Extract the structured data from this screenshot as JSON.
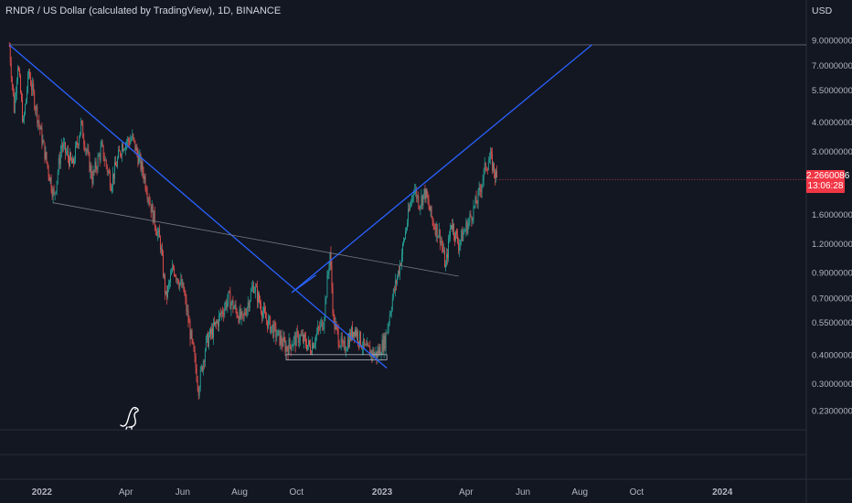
{
  "header": {
    "title": "RNDR / US Dollar (calculated by TradingView), 1D, BINANCE",
    "currency": "USD"
  },
  "price_badge": {
    "price": "2.2660086",
    "countdown": "13:06:28",
    "color": "#f23645"
  },
  "icons": [
    "dinosaur-mascot-icon"
  ],
  "colors": {
    "background": "#131722",
    "up_candle": "#26a69a",
    "down_candle": "#ef5350",
    "trendline": "#2962ff",
    "gray_line": "#787b86"
  },
  "chart_data": {
    "type": "candlestick",
    "title": "RNDR / US Dollar (calculated by TradingView), 1D, BINANCE",
    "y_scale": "log",
    "ylim": [
      0.19,
      10.4
    ],
    "xlim": [
      "2021-11-17",
      "2024-03-31"
    ],
    "y_ticks": [
      {
        "value": 9.0,
        "label": "9.0000000"
      },
      {
        "value": 7.0,
        "label": "7.0000000"
      },
      {
        "value": 5.5,
        "label": "5.5000000"
      },
      {
        "value": 4.0,
        "label": "4.0000000"
      },
      {
        "value": 3.0,
        "label": "3.0000000"
      },
      {
        "value": 1.6,
        "label": "1.6000000"
      },
      {
        "value": 1.2,
        "label": "1.2000000"
      },
      {
        "value": 0.9,
        "label": "0.9000000"
      },
      {
        "value": 0.7,
        "label": "0.7000000"
      },
      {
        "value": 0.55,
        "label": "0.5500000"
      },
      {
        "value": 0.4,
        "label": "0.4000000"
      },
      {
        "value": 0.3,
        "label": "0.3000000"
      },
      {
        "value": 0.23,
        "label": "0.2300000"
      }
    ],
    "x_ticks": [
      {
        "date": "2022-01-01",
        "label": "2022",
        "bold": true
      },
      {
        "date": "2022-04-01",
        "label": "Apr",
        "bold": false
      },
      {
        "date": "2022-06-01",
        "label": "Jun",
        "bold": false
      },
      {
        "date": "2022-08-01",
        "label": "Aug",
        "bold": false
      },
      {
        "date": "2022-10-01",
        "label": "Oct",
        "bold": false
      },
      {
        "date": "2023-01-01",
        "label": "2023",
        "bold": true
      },
      {
        "date": "2023-04-01",
        "label": "Apr",
        "bold": false
      },
      {
        "date": "2023-06-01",
        "label": "Jun",
        "bold": false
      },
      {
        "date": "2023-08-01",
        "label": "Aug",
        "bold": false
      },
      {
        "date": "2023-10-01",
        "label": "Oct",
        "bold": false
      },
      {
        "date": "2024-01-01",
        "label": "2024",
        "bold": true
      }
    ],
    "last_price": 2.2660086,
    "price_path": [
      [
        "2021-11-27",
        8.5
      ],
      [
        "2021-12-02",
        4.6
      ],
      [
        "2021-12-06",
        7.2
      ],
      [
        "2021-12-12",
        3.9
      ],
      [
        "2021-12-18",
        6.6
      ],
      [
        "2021-12-28",
        4.1
      ],
      [
        "2022-01-06",
        2.7
      ],
      [
        "2022-01-14",
        1.9
      ],
      [
        "2022-01-22",
        3.2
      ],
      [
        "2022-02-03",
        2.6
      ],
      [
        "2022-02-12",
        3.9
      ],
      [
        "2022-02-24",
        2.3
      ],
      [
        "2022-03-06",
        3.1
      ],
      [
        "2022-03-16",
        2.2
      ],
      [
        "2022-03-28",
        3.2
      ],
      [
        "2022-04-08",
        3.4
      ],
      [
        "2022-04-20",
        2.4
      ],
      [
        "2022-04-30",
        1.6
      ],
      [
        "2022-05-08",
        1.2
      ],
      [
        "2022-05-14",
        0.7
      ],
      [
        "2022-05-22",
        0.95
      ],
      [
        "2022-06-02",
        0.75
      ],
      [
        "2022-06-12",
        0.42
      ],
      [
        "2022-06-18",
        0.29
      ],
      [
        "2022-06-26",
        0.45
      ],
      [
        "2022-07-08",
        0.55
      ],
      [
        "2022-07-20",
        0.7
      ],
      [
        "2022-08-04",
        0.56
      ],
      [
        "2022-08-16",
        0.8
      ],
      [
        "2022-08-28",
        0.58
      ],
      [
        "2022-09-08",
        0.5
      ],
      [
        "2022-09-20",
        0.43
      ],
      [
        "2022-10-04",
        0.48
      ],
      [
        "2022-10-16",
        0.43
      ],
      [
        "2022-10-30",
        0.56
      ],
      [
        "2022-11-06",
        1.1
      ],
      [
        "2022-11-10",
        0.55
      ],
      [
        "2022-11-20",
        0.42
      ],
      [
        "2022-12-02",
        0.52
      ],
      [
        "2022-12-14",
        0.42
      ],
      [
        "2022-12-26",
        0.4
      ],
      [
        "2023-01-04",
        0.46
      ],
      [
        "2023-01-12",
        0.7
      ],
      [
        "2023-01-20",
        0.98
      ],
      [
        "2023-01-28",
        1.5
      ],
      [
        "2023-02-04",
        2.1
      ],
      [
        "2023-02-10",
        1.8
      ],
      [
        "2023-02-16",
        2.0
      ],
      [
        "2023-02-24",
        1.5
      ],
      [
        "2023-03-04",
        1.3
      ],
      [
        "2023-03-10",
        0.95
      ],
      [
        "2023-03-16",
        1.5
      ],
      [
        "2023-03-24",
        1.2
      ],
      [
        "2023-04-04",
        1.5
      ],
      [
        "2023-04-14",
        1.9
      ],
      [
        "2023-04-22",
        2.6
      ],
      [
        "2023-04-27",
        2.8
      ],
      [
        "2023-05-04",
        2.27
      ]
    ],
    "drawings": [
      {
        "name": "horizontal-top-line",
        "from": [
          "2021-11-27",
          8.6
        ],
        "to": [
          "2024-03-31",
          8.6
        ],
        "color": "#787b86"
      },
      {
        "name": "descending-trendline",
        "from": [
          "2021-11-27",
          8.6
        ],
        "to": [
          "2023-01-06",
          0.35
        ],
        "color": "#2962ff"
      },
      {
        "name": "ascending-trendline",
        "from": [
          "2022-09-26",
          0.74
        ],
        "to": [
          "2023-08-14",
          8.6
        ],
        "color": "#2962ff"
      },
      {
        "name": "gray-support-line",
        "from": [
          "2022-01-13",
          1.8
        ],
        "to": [
          "2023-03-24",
          0.87
        ],
        "color": "#787b86"
      },
      {
        "name": "cyan-segment",
        "from": [
          "2022-09-26",
          0.74
        ],
        "to": [
          "2022-10-22",
          0.88
        ],
        "color": "#2962ff"
      }
    ],
    "range_box": {
      "from": "2022-09-20",
      "to": "2023-01-06",
      "high": 0.4,
      "low": 0.38,
      "label": ""
    },
    "grid": false,
    "legend": "none"
  }
}
